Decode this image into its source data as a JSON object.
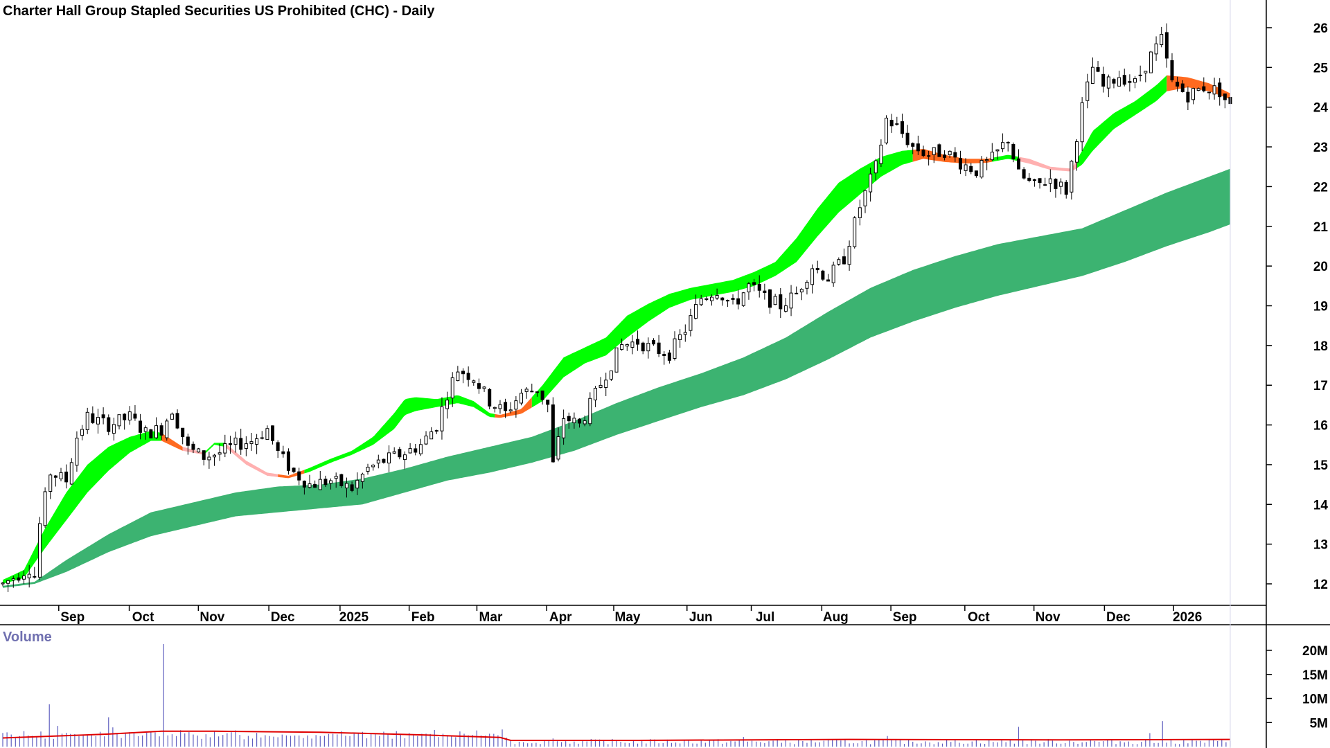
{
  "chart_data": {
    "type": "candlestick",
    "title": "Charter Hall Group Stapled Securities US Prohibited (CHC) - Daily",
    "price_axis": {
      "ylim": [
        11.4,
        26.6
      ],
      "ticks": [
        "12",
        "13",
        "14",
        "15",
        "16",
        "17",
        "18",
        "19",
        "20",
        "21",
        "22",
        "23",
        "24",
        "25",
        "26"
      ],
      "position": "right"
    },
    "x_axis": {
      "labels": [
        "Sep",
        "Oct",
        "Nov",
        "Dec",
        "2025",
        "Feb",
        "Mar",
        "Apr",
        "May",
        "Jun",
        "Jul",
        "Aug",
        "Sep",
        "Oct",
        "Nov",
        "Dec",
        "2026"
      ]
    },
    "volume_panel": {
      "label": "Volume",
      "ylim": [
        0,
        22
      ],
      "ticks": [
        "20M",
        "15M",
        "10M",
        "5M"
      ],
      "average_color": "#e00000",
      "bar_color": "#6060c0"
    },
    "colors": {
      "short_band_up": "#00ff00",
      "short_band_down": "#ff6a20",
      "short_band_flat": "#ffb0b0",
      "long_band": "#3cb371",
      "candle": "#000000"
    },
    "bands": {
      "short": [
        {
          "d": 0,
          "a": 12.1,
          "b": 12.0
        },
        {
          "d": 20,
          "a": 12.35,
          "b": 12.15
        },
        {
          "d": 40,
          "a": 13.4,
          "b": 12.9
        },
        {
          "d": 60,
          "a": 14.3,
          "b": 13.6
        },
        {
          "d": 80,
          "a": 15.0,
          "b": 14.3
        },
        {
          "d": 100,
          "a": 15.45,
          "b": 14.85
        },
        {
          "d": 120,
          "a": 15.7,
          "b": 15.3
        },
        {
          "d": 140,
          "a": 15.85,
          "b": 15.6
        },
        {
          "d": 150,
          "a": 15.8,
          "b": 15.6
        },
        {
          "d": 170,
          "a": 15.45,
          "b": 15.35
        },
        {
          "d": 190,
          "a": 15.3,
          "b": 15.25
        },
        {
          "d": 200,
          "a": 15.55,
          "b": 15.5
        },
        {
          "d": 210,
          "a": 15.55,
          "b": 15.45
        },
        {
          "d": 230,
          "a": 15.1,
          "b": 15.0
        },
        {
          "d": 250,
          "a": 14.8,
          "b": 14.72
        },
        {
          "d": 270,
          "a": 14.72,
          "b": 14.66
        },
        {
          "d": 290,
          "a": 14.92,
          "b": 14.82
        },
        {
          "d": 310,
          "a": 15.15,
          "b": 15.05
        },
        {
          "d": 330,
          "a": 15.35,
          "b": 15.25
        },
        {
          "d": 350,
          "a": 15.7,
          "b": 15.5
        },
        {
          "d": 370,
          "a": 16.3,
          "b": 15.9
        },
        {
          "d": 380,
          "a": 16.65,
          "b": 16.25
        },
        {
          "d": 390,
          "a": 16.7,
          "b": 16.35
        },
        {
          "d": 410,
          "a": 16.65,
          "b": 16.45
        },
        {
          "d": 430,
          "a": 16.75,
          "b": 16.55
        },
        {
          "d": 445,
          "a": 16.6,
          "b": 16.45
        },
        {
          "d": 460,
          "a": 16.3,
          "b": 16.2
        },
        {
          "d": 470,
          "a": 16.25,
          "b": 16.18
        },
        {
          "d": 490,
          "a": 16.4,
          "b": 16.28
        },
        {
          "d": 510,
          "a": 17.0,
          "b": 16.6
        },
        {
          "d": 530,
          "a": 17.7,
          "b": 17.2
        },
        {
          "d": 550,
          "a": 17.95,
          "b": 17.55
        },
        {
          "d": 570,
          "a": 18.2,
          "b": 17.75
        },
        {
          "d": 590,
          "a": 18.75,
          "b": 18.2
        },
        {
          "d": 610,
          "a": 19.05,
          "b": 18.6
        },
        {
          "d": 630,
          "a": 19.3,
          "b": 18.95
        },
        {
          "d": 650,
          "a": 19.45,
          "b": 19.15
        },
        {
          "d": 670,
          "a": 19.55,
          "b": 19.25
        },
        {
          "d": 690,
          "a": 19.65,
          "b": 19.35
        },
        {
          "d": 710,
          "a": 19.85,
          "b": 19.5
        },
        {
          "d": 730,
          "a": 20.1,
          "b": 19.75
        },
        {
          "d": 750,
          "a": 20.7,
          "b": 20.1
        },
        {
          "d": 770,
          "a": 21.45,
          "b": 20.75
        },
        {
          "d": 790,
          "a": 22.1,
          "b": 21.35
        },
        {
          "d": 810,
          "a": 22.45,
          "b": 21.8
        },
        {
          "d": 830,
          "a": 22.75,
          "b": 22.25
        },
        {
          "d": 850,
          "a": 22.9,
          "b": 22.55
        },
        {
          "d": 870,
          "a": 22.95,
          "b": 22.7
        },
        {
          "d": 890,
          "a": 22.8,
          "b": 22.62
        },
        {
          "d": 910,
          "a": 22.7,
          "b": 22.58
        },
        {
          "d": 930,
          "a": 22.7,
          "b": 22.6
        },
        {
          "d": 950,
          "a": 22.8,
          "b": 22.7
        },
        {
          "d": 970,
          "a": 22.7,
          "b": 22.58
        },
        {
          "d": 990,
          "a": 22.5,
          "b": 22.42
        },
        {
          "d": 1010,
          "a": 22.45,
          "b": 22.38
        },
        {
          "d": 1020,
          "a": 22.9,
          "b": 22.55
        },
        {
          "d": 1030,
          "a": 23.4,
          "b": 22.9
        },
        {
          "d": 1050,
          "a": 23.85,
          "b": 23.45
        },
        {
          "d": 1070,
          "a": 24.15,
          "b": 23.8
        },
        {
          "d": 1090,
          "a": 24.55,
          "b": 24.15
        },
        {
          "d": 1100,
          "a": 24.8,
          "b": 24.4
        },
        {
          "d": 1120,
          "a": 24.75,
          "b": 24.5
        },
        {
          "d": 1140,
          "a": 24.6,
          "b": 24.4
        },
        {
          "d": 1160,
          "a": 24.35,
          "b": 24.2
        }
      ],
      "short_colors": [
        {
          "from": 0,
          "to": 150,
          "c": "up"
        },
        {
          "from": 150,
          "to": 170,
          "c": "down"
        },
        {
          "from": 170,
          "to": 190,
          "c": "flat"
        },
        {
          "from": 190,
          "to": 210,
          "c": "up"
        },
        {
          "from": 210,
          "to": 260,
          "c": "flat"
        },
        {
          "from": 260,
          "to": 285,
          "c": "down"
        },
        {
          "from": 285,
          "to": 465,
          "c": "up"
        },
        {
          "from": 465,
          "to": 500,
          "c": "down"
        },
        {
          "from": 500,
          "to": 860,
          "c": "up"
        },
        {
          "from": 860,
          "to": 935,
          "c": "down"
        },
        {
          "from": 935,
          "to": 960,
          "c": "up"
        },
        {
          "from": 960,
          "to": 1015,
          "c": "flat"
        },
        {
          "from": 1015,
          "to": 1100,
          "c": "up"
        },
        {
          "from": 1100,
          "to": 1160,
          "c": "down"
        }
      ],
      "long": [
        {
          "d": 0,
          "a": 11.95,
          "b": 11.9
        },
        {
          "d": 30,
          "a": 12.05,
          "b": 12.0
        },
        {
          "d": 60,
          "a": 12.6,
          "b": 12.3
        },
        {
          "d": 100,
          "a": 13.25,
          "b": 12.8
        },
        {
          "d": 140,
          "a": 13.8,
          "b": 13.2
        },
        {
          "d": 180,
          "a": 14.05,
          "b": 13.45
        },
        {
          "d": 220,
          "a": 14.3,
          "b": 13.7
        },
        {
          "d": 260,
          "a": 14.45,
          "b": 13.8
        },
        {
          "d": 300,
          "a": 14.5,
          "b": 13.9
        },
        {
          "d": 340,
          "a": 14.65,
          "b": 14.0
        },
        {
          "d": 380,
          "a": 14.9,
          "b": 14.3
        },
        {
          "d": 420,
          "a": 15.2,
          "b": 14.6
        },
        {
          "d": 460,
          "a": 15.45,
          "b": 14.8
        },
        {
          "d": 500,
          "a": 15.7,
          "b": 15.05
        },
        {
          "d": 540,
          "a": 16.1,
          "b": 15.35
        },
        {
          "d": 580,
          "a": 16.55,
          "b": 15.75
        },
        {
          "d": 620,
          "a": 16.95,
          "b": 16.1
        },
        {
          "d": 660,
          "a": 17.3,
          "b": 16.45
        },
        {
          "d": 700,
          "a": 17.7,
          "b": 16.75
        },
        {
          "d": 740,
          "a": 18.2,
          "b": 17.15
        },
        {
          "d": 780,
          "a": 18.85,
          "b": 17.65
        },
        {
          "d": 820,
          "a": 19.45,
          "b": 18.2
        },
        {
          "d": 860,
          "a": 19.9,
          "b": 18.6
        },
        {
          "d": 900,
          "a": 20.25,
          "b": 18.95
        },
        {
          "d": 940,
          "a": 20.55,
          "b": 19.25
        },
        {
          "d": 980,
          "a": 20.75,
          "b": 19.5
        },
        {
          "d": 1020,
          "a": 20.95,
          "b": 19.75
        },
        {
          "d": 1060,
          "a": 21.4,
          "b": 20.1
        },
        {
          "d": 1100,
          "a": 21.85,
          "b": 20.5
        },
        {
          "d": 1140,
          "a": 22.25,
          "b": 20.85
        },
        {
          "d": 1160,
          "a": 22.45,
          "b": 21.05
        }
      ],
      "price_path": [
        {
          "d": 0,
          "p": 12.0
        },
        {
          "d": 25,
          "p": 12.4
        },
        {
          "d": 30,
          "p": 12.2
        },
        {
          "d": 35,
          "p": 13.5
        },
        {
          "d": 45,
          "p": 14.8
        },
        {
          "d": 60,
          "p": 14.6
        },
        {
          "d": 70,
          "p": 15.7
        },
        {
          "d": 80,
          "p": 16.2
        },
        {
          "d": 100,
          "p": 16.0
        },
        {
          "d": 120,
          "p": 16.2
        },
        {
          "d": 135,
          "p": 15.8
        },
        {
          "d": 150,
          "p": 15.9
        },
        {
          "d": 160,
          "p": 16.4
        },
        {
          "d": 175,
          "p": 15.4
        },
        {
          "d": 190,
          "p": 15.2
        },
        {
          "d": 205,
          "p": 15.3
        },
        {
          "d": 220,
          "p": 15.5
        },
        {
          "d": 235,
          "p": 15.6
        },
        {
          "d": 250,
          "p": 15.9
        },
        {
          "d": 260,
          "p": 15.3
        },
        {
          "d": 275,
          "p": 14.8
        },
        {
          "d": 290,
          "p": 14.5
        },
        {
          "d": 310,
          "p": 14.6
        },
        {
          "d": 330,
          "p": 14.4
        },
        {
          "d": 345,
          "p": 14.9
        },
        {
          "d": 360,
          "p": 15.1
        },
        {
          "d": 380,
          "p": 15.3
        },
        {
          "d": 395,
          "p": 15.5
        },
        {
          "d": 410,
          "p": 16.0
        },
        {
          "d": 420,
          "p": 16.8
        },
        {
          "d": 430,
          "p": 17.4
        },
        {
          "d": 445,
          "p": 17.2
        },
        {
          "d": 460,
          "p": 16.6
        },
        {
          "d": 475,
          "p": 16.3
        },
        {
          "d": 490,
          "p": 16.8
        },
        {
          "d": 505,
          "p": 16.9
        },
        {
          "d": 515,
          "p": 16.5
        },
        {
          "d": 520,
          "p": 15.0
        },
        {
          "d": 530,
          "p": 16.2
        },
        {
          "d": 545,
          "p": 16.0
        },
        {
          "d": 555,
          "p": 16.5
        },
        {
          "d": 570,
          "p": 17.3
        },
        {
          "d": 585,
          "p": 18.0
        },
        {
          "d": 600,
          "p": 18.1
        },
        {
          "d": 615,
          "p": 17.9
        },
        {
          "d": 630,
          "p": 17.8
        },
        {
          "d": 645,
          "p": 18.4
        },
        {
          "d": 660,
          "p": 19.2
        },
        {
          "d": 675,
          "p": 19.4
        },
        {
          "d": 690,
          "p": 19.0
        },
        {
          "d": 705,
          "p": 19.5
        },
        {
          "d": 720,
          "p": 19.2
        },
        {
          "d": 735,
          "p": 19.0
        },
        {
          "d": 750,
          "p": 19.3
        },
        {
          "d": 765,
          "p": 20.0
        },
        {
          "d": 780,
          "p": 19.7
        },
        {
          "d": 795,
          "p": 20.2
        },
        {
          "d": 810,
          "p": 21.5
        },
        {
          "d": 825,
          "p": 22.5
        },
        {
          "d": 835,
          "p": 23.7
        },
        {
          "d": 845,
          "p": 23.5
        },
        {
          "d": 860,
          "p": 23.0
        },
        {
          "d": 875,
          "p": 22.8
        },
        {
          "d": 890,
          "p": 22.9
        },
        {
          "d": 905,
          "p": 22.6
        },
        {
          "d": 920,
          "p": 22.4
        },
        {
          "d": 935,
          "p": 22.7
        },
        {
          "d": 950,
          "p": 23.2
        },
        {
          "d": 960,
          "p": 22.3
        },
        {
          "d": 975,
          "p": 22.0
        },
        {
          "d": 990,
          "p": 22.2
        },
        {
          "d": 1005,
          "p": 21.9
        },
        {
          "d": 1010,
          "p": 22.6
        },
        {
          "d": 1020,
          "p": 24.0
        },
        {
          "d": 1030,
          "p": 25.0
        },
        {
          "d": 1040,
          "p": 24.5
        },
        {
          "d": 1055,
          "p": 24.8
        },
        {
          "d": 1070,
          "p": 24.6
        },
        {
          "d": 1085,
          "p": 25.3
        },
        {
          "d": 1095,
          "p": 25.7
        },
        {
          "d": 1105,
          "p": 24.6
        },
        {
          "d": 1120,
          "p": 24.3
        },
        {
          "d": 1135,
          "p": 24.5
        },
        {
          "d": 1150,
          "p": 24.4
        },
        {
          "d": 1160,
          "p": 24.0
        }
      ]
    },
    "volume_spikes": [
      {
        "d": 45,
        "v": 8.8
      },
      {
        "d": 52,
        "v": 4.3
      },
      {
        "d": 58,
        "v": 3.1
      },
      {
        "d": 100,
        "v": 6.1
      },
      {
        "d": 105,
        "v": 4.0
      },
      {
        "d": 108,
        "v": 2.7
      },
      {
        "d": 153,
        "v": 21.3
      },
      {
        "d": 250,
        "v": 1.6
      },
      {
        "d": 420,
        "v": 2.4
      },
      {
        "d": 520,
        "v": 1.7
      },
      {
        "d": 670,
        "v": 4.3
      },
      {
        "d": 700,
        "v": 2.0
      },
      {
        "d": 835,
        "v": 2.2
      },
      {
        "d": 960,
        "v": 4.1
      },
      {
        "d": 1010,
        "v": 1.8
      },
      {
        "d": 1085,
        "v": 2.8
      },
      {
        "d": 1095,
        "v": 5.3
      },
      {
        "d": 1160,
        "v": 1.2
      }
    ],
    "volume_average": [
      {
        "d": 0,
        "v": 1.8
      },
      {
        "d": 100,
        "v": 2.6
      },
      {
        "d": 150,
        "v": 3.2
      },
      {
        "d": 200,
        "v": 3.2
      },
      {
        "d": 300,
        "v": 3.0
      },
      {
        "d": 400,
        "v": 2.4
      },
      {
        "d": 470,
        "v": 1.9
      },
      {
        "d": 480,
        "v": 1.3
      },
      {
        "d": 600,
        "v": 1.3
      },
      {
        "d": 800,
        "v": 1.5
      },
      {
        "d": 1000,
        "v": 1.4
      },
      {
        "d": 1160,
        "v": 1.5
      }
    ]
  }
}
